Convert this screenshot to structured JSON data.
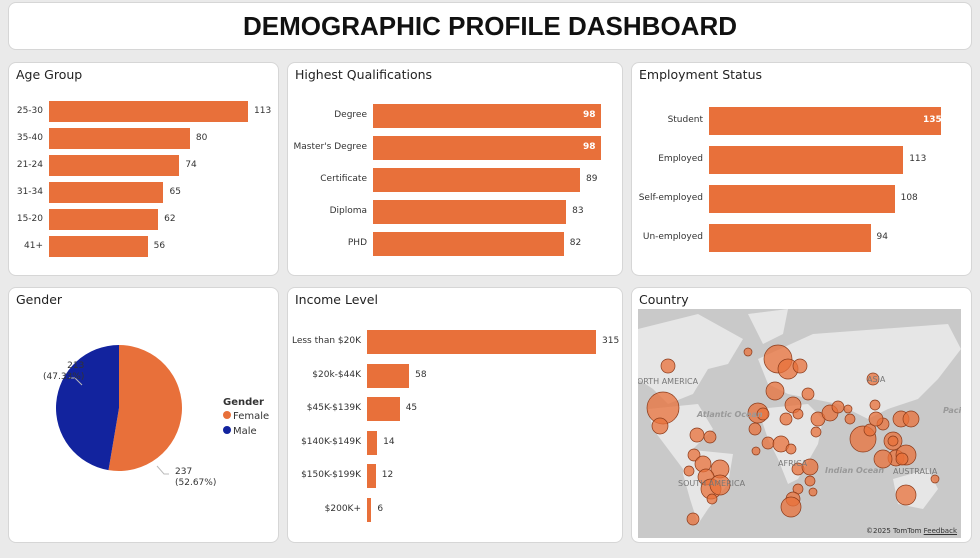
{
  "header": {
    "title": "DEMOGRAPHIC PROFILE DASHBOARD"
  },
  "colors": {
    "bar": "#E8703A",
    "female": "#E8703A",
    "male": "#12239E"
  },
  "chart_data": [
    {
      "id": "age",
      "type": "bar",
      "orientation": "horizontal",
      "title": "Age Group",
      "categories": [
        "25-30",
        "35-40",
        "21-24",
        "31-34",
        "15-20",
        "41+"
      ],
      "values": [
        113,
        80,
        74,
        65,
        62,
        56
      ]
    },
    {
      "id": "qual",
      "type": "bar",
      "orientation": "horizontal",
      "title": "Highest Qualifications",
      "categories": [
        "Degree",
        "Master's Degree",
        "Certificate",
        "Diploma",
        "PHD"
      ],
      "values": [
        98,
        98,
        89,
        83,
        82
      ]
    },
    {
      "id": "emp",
      "type": "bar",
      "orientation": "horizontal",
      "title": "Employment Status",
      "categories": [
        "Student",
        "Employed",
        "Self-employed",
        "Un-employed"
      ],
      "values": [
        135,
        113,
        108,
        94
      ]
    },
    {
      "id": "gender",
      "type": "pie",
      "title": "Gender",
      "legend_title": "Gender",
      "legend_position": "right",
      "slices": [
        {
          "name": "Female",
          "value": 237,
          "label": "237",
          "pct": "(52.67%)"
        },
        {
          "name": "Male",
          "value": 213,
          "label": "213",
          "pct": "(47.33%)"
        }
      ]
    },
    {
      "id": "income",
      "type": "bar",
      "orientation": "horizontal",
      "title": "Income Level",
      "categories": [
        "Less than $20K",
        "$20k-$44K",
        "$45K-$139K",
        "$140K-$149K",
        "$150K-$199K",
        "$200K+"
      ],
      "values": [
        315,
        58,
        45,
        14,
        12,
        6
      ]
    }
  ],
  "map": {
    "title": "Country",
    "labels": {
      "na": "NORTH AMERICA",
      "sa": "SOUTH AMERICA",
      "africa": "AFRICA",
      "asia": "ASIA",
      "aus": "AUSTRALIA",
      "atlantic": "Atlantic Ocean",
      "indian": "Indian Ocean",
      "pacific": "Pacific"
    },
    "attribution": "©2025 TomTom",
    "feedback": "Feedback"
  }
}
